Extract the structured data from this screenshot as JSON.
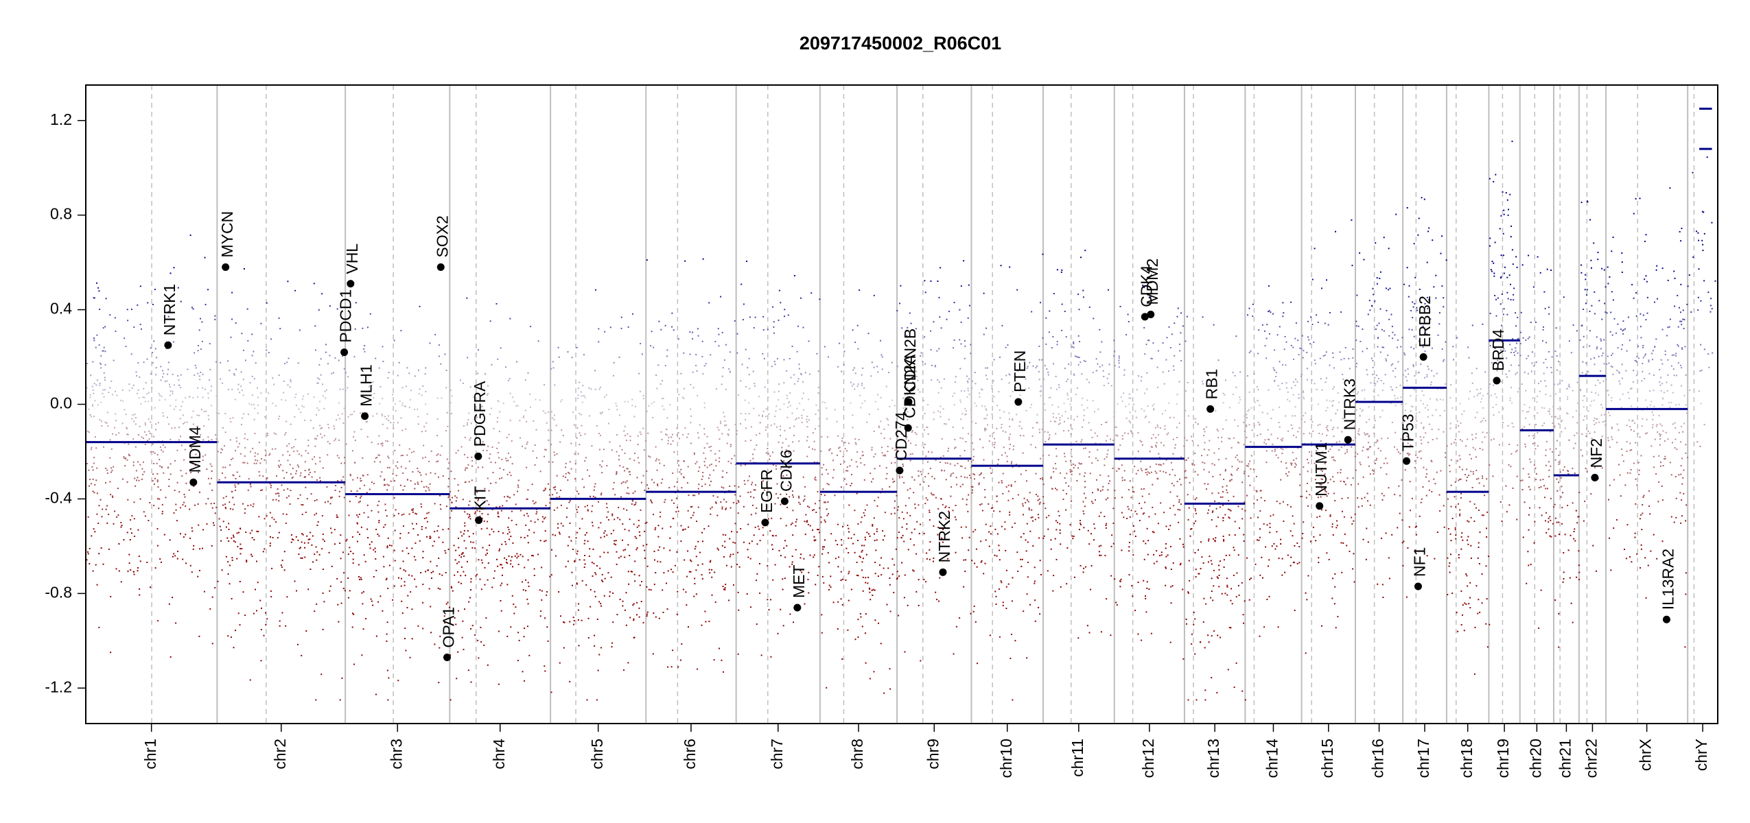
{
  "chart_data": {
    "type": "scatter",
    "title": "209717450002_R06C01",
    "xlabel": "",
    "ylabel": "",
    "ylim": [
      -1.35,
      1.35
    ],
    "yticks": [
      1.2,
      0.8,
      0.4,
      0.0,
      -0.4,
      -0.8,
      -1.2
    ],
    "ytick_labels": [
      "1.2",
      "0.8",
      "0.4",
      "0.0",
      "-0.4",
      "-0.8",
      "-1.2"
    ],
    "x_units": "genomic position (Mb, cumulative)",
    "colors": {
      "gain": "#00008b",
      "loss": "#8b0000",
      "segment": "#00008b",
      "boundary": "#bebebe",
      "gene": "#000000"
    },
    "chromosomes": [
      {
        "name": "chr1",
        "length": 249,
        "centromere": 125
      },
      {
        "name": "chr2",
        "length": 243,
        "centromere": 93
      },
      {
        "name": "chr3",
        "length": 198,
        "centromere": 91
      },
      {
        "name": "chr4",
        "length": 191,
        "centromere": 50
      },
      {
        "name": "chr5",
        "length": 181,
        "centromere": 48
      },
      {
        "name": "chr6",
        "length": 171,
        "centromere": 60
      },
      {
        "name": "chr7",
        "length": 159,
        "centromere": 60
      },
      {
        "name": "chr8",
        "length": 146,
        "centromere": 45
      },
      {
        "name": "chr9",
        "length": 141,
        "centromere": 49
      },
      {
        "name": "chr10",
        "length": 136,
        "centromere": 40
      },
      {
        "name": "chr11",
        "length": 135,
        "centromere": 53
      },
      {
        "name": "chr12",
        "length": 133,
        "centromere": 35
      },
      {
        "name": "chr13",
        "length": 115,
        "centromere": 17
      },
      {
        "name": "chr14",
        "length": 107,
        "centromere": 17
      },
      {
        "name": "chr15",
        "length": 102,
        "centromere": 19
      },
      {
        "name": "chr16",
        "length": 90,
        "centromere": 36
      },
      {
        "name": "chr17",
        "length": 83,
        "centromere": 25
      },
      {
        "name": "chr18",
        "length": 80,
        "centromere": 18
      },
      {
        "name": "chr19",
        "length": 59,
        "centromere": 26
      },
      {
        "name": "chr20",
        "length": 64,
        "centromere": 28
      },
      {
        "name": "chr21",
        "length": 48,
        "centromere": 12
      },
      {
        "name": "chr22",
        "length": 51,
        "centromere": 15
      },
      {
        "name": "chrX",
        "length": 155,
        "centromere": 60
      },
      {
        "name": "chrY",
        "length": 57,
        "centromere": 12
      }
    ],
    "segments": [
      {
        "chr": "chr1",
        "start": 0,
        "end": 249,
        "value": -0.16
      },
      {
        "chr": "chr2",
        "start": 0,
        "end": 243,
        "value": -0.33
      },
      {
        "chr": "chr3",
        "start": 0,
        "end": 198,
        "value": -0.38
      },
      {
        "chr": "chr4",
        "start": 0,
        "end": 191,
        "value": -0.44
      },
      {
        "chr": "chr5",
        "start": 0,
        "end": 181,
        "value": -0.4
      },
      {
        "chr": "chr6",
        "start": 0,
        "end": 171,
        "value": -0.37
      },
      {
        "chr": "chr7",
        "start": 0,
        "end": 159,
        "value": -0.25
      },
      {
        "chr": "chr8",
        "start": 0,
        "end": 146,
        "value": -0.37
      },
      {
        "chr": "chr9",
        "start": 0,
        "end": 141,
        "value": -0.23
      },
      {
        "chr": "chr10",
        "start": 0,
        "end": 136,
        "value": -0.26
      },
      {
        "chr": "chr11",
        "start": 0,
        "end": 135,
        "value": -0.17
      },
      {
        "chr": "chr12",
        "start": 0,
        "end": 133,
        "value": -0.23
      },
      {
        "chr": "chr13",
        "start": 0,
        "end": 115,
        "value": -0.42
      },
      {
        "chr": "chr14",
        "start": 0,
        "end": 107,
        "value": -0.18
      },
      {
        "chr": "chr15",
        "start": 0,
        "end": 102,
        "value": -0.17
      },
      {
        "chr": "chr16",
        "start": 0,
        "end": 90,
        "value": 0.01
      },
      {
        "chr": "chr17",
        "start": 0,
        "end": 83,
        "value": 0.07
      },
      {
        "chr": "chr18",
        "start": 0,
        "end": 80,
        "value": -0.37
      },
      {
        "chr": "chr19",
        "start": 0,
        "end": 59,
        "value": 0.27
      },
      {
        "chr": "chr20",
        "start": 0,
        "end": 64,
        "value": -0.11
      },
      {
        "chr": "chr21",
        "start": 0,
        "end": 48,
        "value": -0.3
      },
      {
        "chr": "chr22",
        "start": 0,
        "end": 51,
        "value": 0.12
      },
      {
        "chr": "chrX",
        "start": 0,
        "end": 155,
        "value": -0.02
      },
      {
        "chr": "chrY",
        "start": 0,
        "end": 12,
        "value": 1.25
      },
      {
        "chr": "chrY",
        "start": 0,
        "end": 12,
        "value": 1.08
      }
    ],
    "genes": [
      {
        "name": "NTRK1",
        "chr": "chr1",
        "pos": 156,
        "value": 0.25
      },
      {
        "name": "MDM4",
        "chr": "chr1",
        "pos": 204,
        "value": -0.33
      },
      {
        "name": "MYCN",
        "chr": "chr2",
        "pos": 16,
        "value": 0.58
      },
      {
        "name": "PDCD1",
        "chr": "chr2",
        "pos": 241,
        "value": 0.22
      },
      {
        "name": "VHL",
        "chr": "chr3",
        "pos": 10,
        "value": 0.51
      },
      {
        "name": "MLH1",
        "chr": "chr3",
        "pos": 37,
        "value": -0.05
      },
      {
        "name": "SOX2",
        "chr": "chr3",
        "pos": 181,
        "value": 0.58
      },
      {
        "name": "OPA1",
        "chr": "chr3",
        "pos": 193,
        "value": -1.07
      },
      {
        "name": "KIT",
        "chr": "chr4",
        "pos": 55,
        "value": -0.49
      },
      {
        "name": "PDGFRA",
        "chr": "chr4",
        "pos": 54,
        "value": -0.22
      },
      {
        "name": "EGFR",
        "chr": "chr7",
        "pos": 55,
        "value": -0.5
      },
      {
        "name": "CDK6",
        "chr": "chr7",
        "pos": 92,
        "value": -0.41
      },
      {
        "name": "MET",
        "chr": "chr7",
        "pos": 116,
        "value": -0.86
      },
      {
        "name": "CD274",
        "chr": "chr9",
        "pos": 5,
        "value": -0.28
      },
      {
        "name": "CDKN2A",
        "chr": "chr9",
        "pos": 21,
        "value": -0.1
      },
      {
        "name": "CDKN2B",
        "chr": "chr9",
        "pos": 22,
        "value": 0.01
      },
      {
        "name": "NTRK2",
        "chr": "chr9",
        "pos": 87,
        "value": -0.71
      },
      {
        "name": "PTEN",
        "chr": "chr10",
        "pos": 89,
        "value": 0.01
      },
      {
        "name": "CDK4",
        "chr": "chr12",
        "pos": 58,
        "value": 0.37
      },
      {
        "name": "MDM2",
        "chr": "chr12",
        "pos": 69,
        "value": 0.38
      },
      {
        "name": "RB1",
        "chr": "chr13",
        "pos": 49,
        "value": -0.02
      },
      {
        "name": "NUTM1",
        "chr": "chr15",
        "pos": 34,
        "value": -0.43
      },
      {
        "name": "NTRK3",
        "chr": "chr15",
        "pos": 88,
        "value": -0.15
      },
      {
        "name": "TP53",
        "chr": "chr17",
        "pos": 7,
        "value": -0.24
      },
      {
        "name": "NF1",
        "chr": "chr17",
        "pos": 29,
        "value": -0.77
      },
      {
        "name": "ERBB2",
        "chr": "chr17",
        "pos": 39,
        "value": 0.2
      },
      {
        "name": "BRD4",
        "chr": "chr19",
        "pos": 15,
        "value": 0.1
      },
      {
        "name": "NF2",
        "chr": "chr22",
        "pos": 30,
        "value": -0.31
      },
      {
        "name": "IL13RA2",
        "chr": "chrX",
        "pos": 115,
        "value": -0.91
      }
    ],
    "probe_scatter": {
      "description": "dense per-probe log2 ratio dots, colored blue (gain) to red (loss); approximated from segment means",
      "probes_per_megabase": 2.3,
      "floor_value": -1.25
    }
  }
}
